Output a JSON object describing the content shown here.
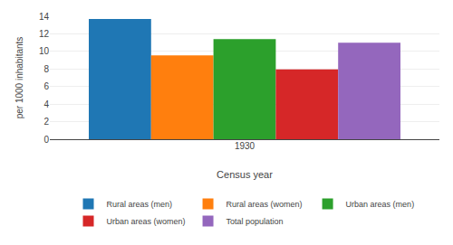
{
  "chart_data": {
    "type": "bar",
    "categories": [
      "1930"
    ],
    "series": [
      {
        "name": "Rural areas (men)",
        "values": [
          13.7
        ]
      },
      {
        "name": "Rural areas (women)",
        "values": [
          9.55
        ]
      },
      {
        "name": "Urban areas (men)",
        "values": [
          11.4
        ]
      },
      {
        "name": "Urban areas (women)",
        "values": [
          7.95
        ]
      },
      {
        "name": "Total population",
        "values": [
          11.0
        ]
      }
    ],
    "xlabel": "Census year",
    "ylabel": "per 1000 inhabitants",
    "ylim": [
      0,
      14
    ],
    "yticks": [
      0,
      2,
      4,
      6,
      8,
      10,
      12,
      14
    ],
    "grid": true,
    "legend": "bottom"
  }
}
